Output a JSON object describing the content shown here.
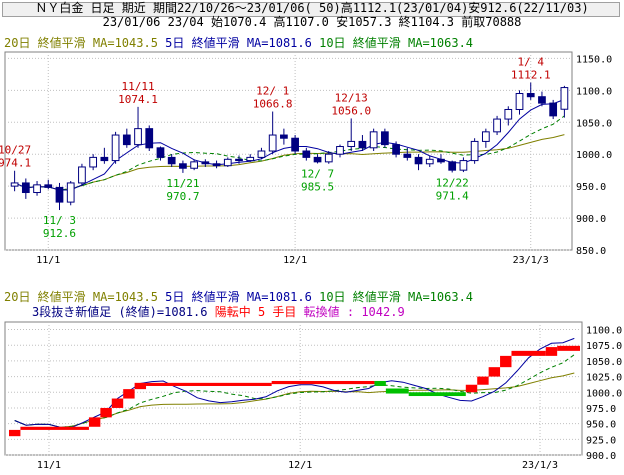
{
  "header": {
    "line1": "ＮＹ白金 日足 期近 期間22/10/26～23/01/06( 50)高1112.1(23/01/04)安912.6(22/11/03)",
    "line2": "23/01/06 23/04 始1070.4 高1107.0 安1057.3 終1104.3 前取70888"
  },
  "colors": {
    "ma20": "#808000",
    "ma5": "#0000a0",
    "ma10": "#008000",
    "up": "#000080",
    "up_fill": "#ffffff",
    "down": "#000080",
    "high_label": "#c00000",
    "low_label": "#00a000",
    "rise_block": "#ff0000",
    "fall_block": "#00c000",
    "grid": "#c0c0c0",
    "status_rise": "#ff0000",
    "status_value": "#c000c0"
  },
  "upper_legend": {
    "ma20": "20日 終値平滑 MA=1043.5",
    "ma5": "5日 終値平滑 MA=1081.6",
    "ma10": "10日 終値平滑 MA=1063.4"
  },
  "lower_legend": {
    "ma20": "20日 終値平滑 MA=1043.5",
    "ma5": "5日 終値平滑 MA=1081.6",
    "ma10": "10日 終値平滑 MA=1063.4",
    "status_prefix": "3段抜き新値足 (終値)=1081.6",
    "status_phase": "陽転中",
    "status_count": "5 手目",
    "status_turn": "転換値 : 1042.9"
  },
  "chart_data": [
    {
      "type": "candlestick",
      "ylim": [
        850,
        1160
      ],
      "yticks": [
        850,
        900,
        950,
        1000,
        1050,
        1100,
        1150
      ],
      "ytick_labels": [
        "850.0",
        "900.0",
        "950.0",
        "1000.0",
        "1050.0",
        "1100.0",
        "1150.0"
      ],
      "xtick_labels": [
        {
          "label": "11/1",
          "index": 3
        },
        {
          "label": "12/1",
          "index": 25
        },
        {
          "label": "23/1/3",
          "index": 46
        }
      ],
      "candles": [
        [
          950,
          974.1,
          942,
          955
        ],
        [
          955,
          962,
          930,
          940
        ],
        [
          940,
          958,
          935,
          952
        ],
        [
          952,
          960,
          945,
          948
        ],
        [
          948,
          955,
          912.6,
          925
        ],
        [
          925,
          958,
          920,
          955
        ],
        [
          955,
          985,
          950,
          980
        ],
        [
          980,
          1000,
          975,
          995
        ],
        [
          995,
          1010,
          985,
          990
        ],
        [
          990,
          1035,
          985,
          1030
        ],
        [
          1030,
          1040,
          1010,
          1015
        ],
        [
          1015,
          1074.1,
          1010,
          1040
        ],
        [
          1040,
          1045,
          1005,
          1010
        ],
        [
          1010,
          1012,
          990,
          995
        ],
        [
          995,
          1000,
          980,
          985
        ],
        [
          985,
          990,
          970.7,
          978
        ],
        [
          978,
          992,
          975,
          988
        ],
        [
          988,
          992,
          980,
          985
        ],
        [
          985,
          990,
          978,
          982
        ],
        [
          982,
          995,
          980,
          992
        ],
        [
          992,
          998,
          985,
          990
        ],
        [
          990,
          1000,
          988,
          995
        ],
        [
          995,
          1010,
          992,
          1005
        ],
        [
          1005,
          1066.8,
          1000,
          1030
        ],
        [
          1030,
          1040,
          1015,
          1025
        ],
        [
          1025,
          1030,
          1000,
          1005
        ],
        [
          1005,
          1010,
          990,
          995
        ],
        [
          995,
          1000,
          985.5,
          988
        ],
        [
          988,
          1005,
          985,
          1000
        ],
        [
          1000,
          1015,
          995,
          1012
        ],
        [
          1012,
          1056,
          1005,
          1020
        ],
        [
          1020,
          1030,
          1005,
          1010
        ],
        [
          1010,
          1040,
          1005,
          1035
        ],
        [
          1035,
          1040,
          1010,
          1015
        ],
        [
          1015,
          1020,
          995,
          1000
        ],
        [
          1000,
          1010,
          990,
          995
        ],
        [
          995,
          1000,
          975,
          985
        ],
        [
          985,
          998,
          980,
          992
        ],
        [
          992,
          1000,
          985,
          988
        ],
        [
          988,
          990,
          971.4,
          975
        ],
        [
          975,
          995,
          972,
          990
        ],
        [
          990,
          1025,
          985,
          1020
        ],
        [
          1020,
          1040,
          1010,
          1035
        ],
        [
          1035,
          1060,
          1030,
          1055
        ],
        [
          1055,
          1075,
          1045,
          1070
        ],
        [
          1070,
          1100,
          1062,
          1095
        ],
        [
          1095,
          1112.1,
          1085,
          1090
        ],
        [
          1090,
          1098,
          1075,
          1080
        ],
        [
          1080,
          1085,
          1055,
          1060
        ],
        [
          1070.4,
          1107,
          1057.3,
          1104.3
        ]
      ],
      "annotations": [
        {
          "kind": "high",
          "index": 0,
          "date": "10/27",
          "value": "974.1"
        },
        {
          "kind": "low",
          "index": 4,
          "date": "11/ 3",
          "value": "912.6"
        },
        {
          "kind": "high",
          "index": 11,
          "date": "11/11",
          "value": "1074.1"
        },
        {
          "kind": "low",
          "index": 15,
          "date": "11/21",
          "value": "970.7"
        },
        {
          "kind": "high",
          "index": 23,
          "date": "12/ 1",
          "value": "1066.8"
        },
        {
          "kind": "low",
          "index": 27,
          "date": "12/ 7",
          "value": "985.5"
        },
        {
          "kind": "high",
          "index": 30,
          "date": "12/13",
          "value": "1056.0"
        },
        {
          "kind": "low",
          "index": 39,
          "date": "12/22",
          "value": "971.4"
        },
        {
          "kind": "high",
          "index": 46,
          "date": "1/ 4",
          "value": "1112.1"
        }
      ]
    },
    {
      "type": "line",
      "ylim": [
        900,
        1112
      ],
      "yticks": [
        900,
        925,
        950,
        975,
        1000,
        1025,
        1050,
        1075,
        1100
      ],
      "ytick_labels": [
        "900.0",
        "925.0",
        "950.0",
        "975.0",
        "1000.0",
        "1025.0",
        "1050.0",
        "1075.0",
        "1100.0"
      ],
      "xtick_labels": [
        {
          "label": "11/1",
          "index": 3
        },
        {
          "label": "12/1",
          "index": 25
        },
        {
          "label": "23/1/3",
          "index": 46
        }
      ],
      "blocks": [
        {
          "start": 0,
          "end": 1,
          "low": 930,
          "high": 940,
          "dir": "up"
        },
        {
          "start": 1,
          "end": 7,
          "low": 940,
          "high": 945,
          "dir": "up"
        },
        {
          "start": 7,
          "end": 8,
          "low": 945,
          "high": 960,
          "dir": "up"
        },
        {
          "start": 8,
          "end": 9,
          "low": 960,
          "high": 975,
          "dir": "up"
        },
        {
          "start": 9,
          "end": 10,
          "low": 975,
          "high": 990,
          "dir": "up"
        },
        {
          "start": 10,
          "end": 11,
          "low": 990,
          "high": 1005,
          "dir": "up"
        },
        {
          "start": 11,
          "end": 12,
          "low": 1005,
          "high": 1015,
          "dir": "up"
        },
        {
          "start": 12,
          "end": 23,
          "low": 1010,
          "high": 1015,
          "dir": "up"
        },
        {
          "start": 23,
          "end": 32,
          "low": 1013,
          "high": 1018,
          "dir": "up"
        },
        {
          "start": 32,
          "end": 33,
          "low": 1010,
          "high": 1018,
          "dir": "down"
        },
        {
          "start": 33,
          "end": 35,
          "low": 998,
          "high": 1006,
          "dir": "down"
        },
        {
          "start": 35,
          "end": 40,
          "low": 994,
          "high": 1000,
          "dir": "down"
        },
        {
          "start": 40,
          "end": 41,
          "low": 1000,
          "high": 1012,
          "dir": "up"
        },
        {
          "start": 41,
          "end": 42,
          "low": 1012,
          "high": 1025,
          "dir": "up"
        },
        {
          "start": 42,
          "end": 43,
          "low": 1025,
          "high": 1040,
          "dir": "up"
        },
        {
          "start": 43,
          "end": 44,
          "low": 1040,
          "high": 1058,
          "dir": "up"
        },
        {
          "start": 44,
          "end": 47,
          "low": 1058,
          "high": 1066,
          "dir": "up"
        },
        {
          "start": 47,
          "end": 48,
          "low": 1058,
          "high": 1072,
          "dir": "up"
        },
        {
          "start": 48,
          "end": 50,
          "low": 1066,
          "high": 1074,
          "dir": "up"
        }
      ]
    }
  ]
}
